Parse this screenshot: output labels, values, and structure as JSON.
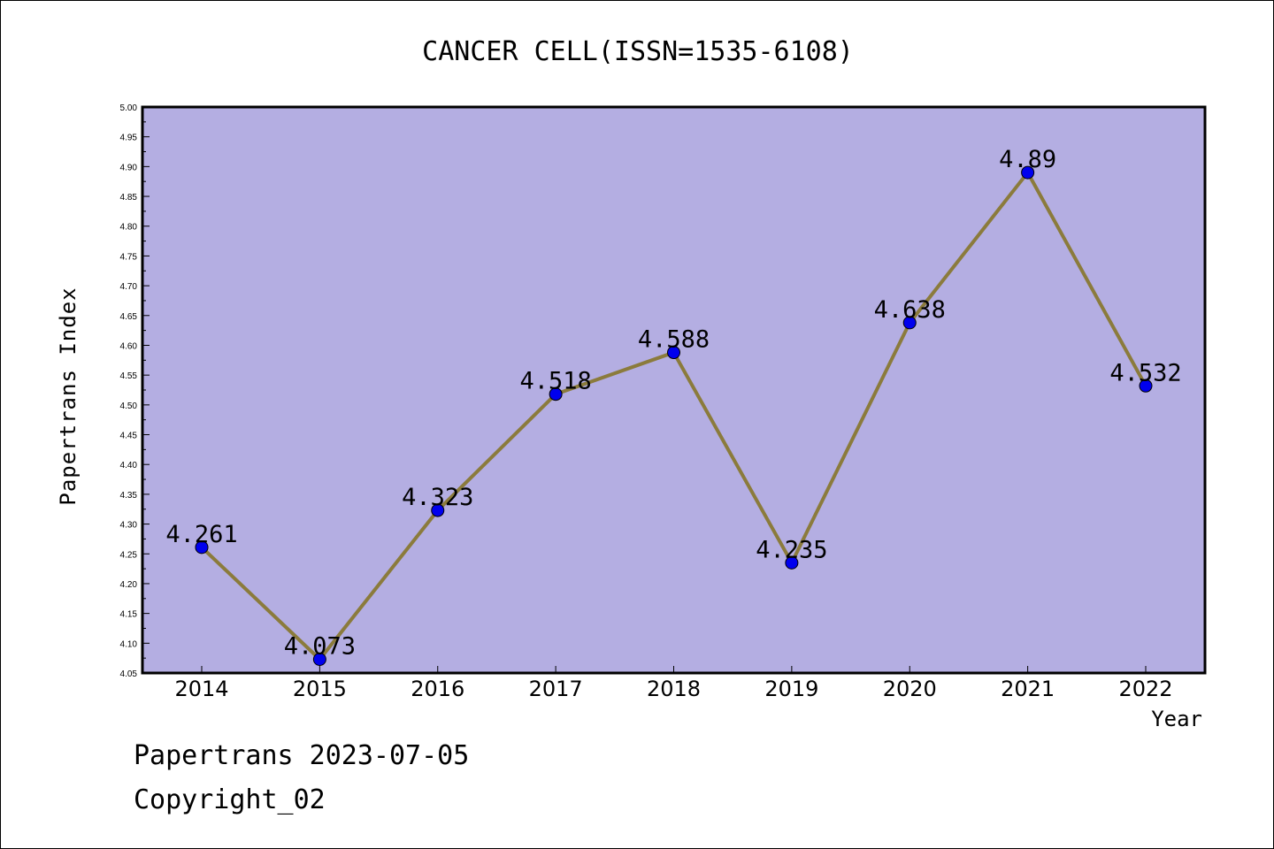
{
  "chart_data": {
    "type": "line",
    "title": "CANCER CELL(ISSN=1535-6108)",
    "xlabel": "Year",
    "ylabel": "Papertrans Index",
    "categories": [
      "2014",
      "2015",
      "2016",
      "2017",
      "2018",
      "2019",
      "2020",
      "2021",
      "2022"
    ],
    "values": [
      4.261,
      4.073,
      4.323,
      4.518,
      4.588,
      4.235,
      4.638,
      4.89,
      4.532
    ],
    "data_labels": [
      "4.261",
      "4.073",
      "4.323",
      "4.518",
      "4.588",
      "4.235",
      "4.638",
      "4.89",
      "4.532"
    ],
    "ylim": [
      4.05,
      5.0
    ],
    "yticks": [
      "4.05",
      "4.10",
      "4.15",
      "4.20",
      "4.25",
      "4.30",
      "4.35",
      "4.40",
      "4.45",
      "4.50",
      "4.55",
      "4.60",
      "4.65",
      "4.70",
      "4.75",
      "4.80",
      "4.85",
      "4.90",
      "4.95",
      "5.00"
    ],
    "grid": false,
    "colors": {
      "plot_background": "#b4aee2",
      "line": "#8b7b3c",
      "marker": "#0000ee",
      "axes": "#000000"
    }
  },
  "footer": {
    "line1": "Papertrans 2023-07-05",
    "line2": "Copyright_02"
  }
}
